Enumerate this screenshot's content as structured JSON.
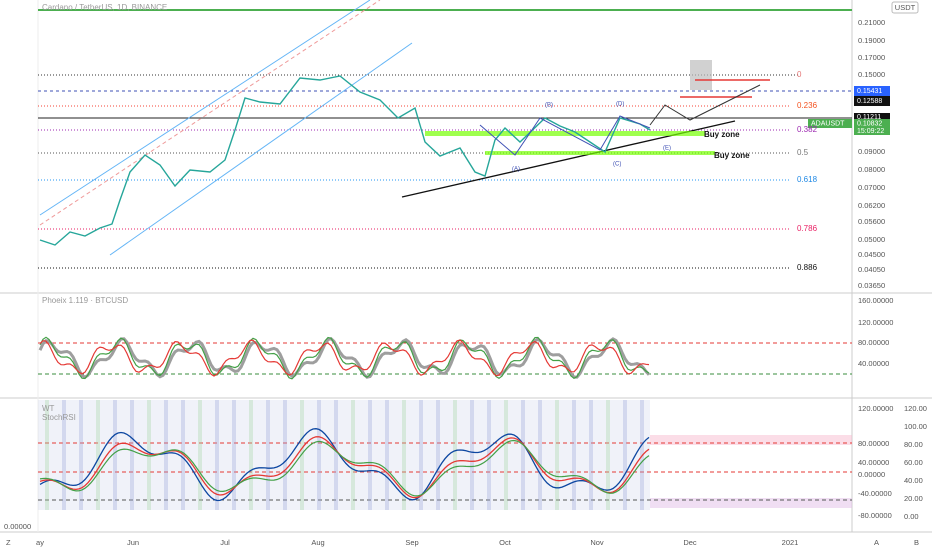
{
  "header": {
    "symbol": "Cardano / TetherUS, 1D, BINANCE",
    "currency": "USDT"
  },
  "price_axis": [
    "0.21000",
    "0.19000",
    "0.17000",
    "0.15000",
    "0.09000",
    "0.08000",
    "0.07000",
    "0.06200",
    "0.05600",
    "0.05000",
    "0.04500",
    "0.04050",
    "0.03650"
  ],
  "price_tags": {
    "target": "0.15431",
    "level1": "0.12588",
    "level2": "0.11211",
    "ticker": "ADAUSDT",
    "last": "0.10832",
    "countdown": "15:09:22"
  },
  "fib_levels": [
    "0",
    "0.236",
    "0.382",
    "0.5",
    "0.618",
    "0.786",
    "0.886"
  ],
  "annotations": {
    "buy_zone_1": "Buy zone",
    "buy_zone_2": "Buy zone",
    "wave_a": "(A)",
    "wave_b": "(B)",
    "wave_c": "(C)",
    "wave_d": "(D)",
    "wave_e": "(E)"
  },
  "indicator1": {
    "title": "Phoeix 1.119 · BTCUSD",
    "axis": [
      "160.00000",
      "120.00000",
      "80.00000",
      "40.00000"
    ]
  },
  "indicator2": {
    "title": "WT",
    "subtitle": "StochRSI",
    "axis": [
      "120.00000",
      "80.00000",
      "40.00000",
      "0.00000",
      "-40.00000",
      "-80.00000"
    ],
    "axis2": [
      "120.00",
      "100.00",
      "80.00",
      "60.00",
      "40.00",
      "20.00",
      "0.00"
    ],
    "left_label": "0.00000"
  },
  "time_axis": [
    "ay",
    "Jun",
    "Jul",
    "Aug",
    "Sep",
    "Oct",
    "Nov",
    "Dec",
    "2021"
  ],
  "corner": {
    "left": "Z",
    "auto": "A",
    "log": "B"
  }
}
